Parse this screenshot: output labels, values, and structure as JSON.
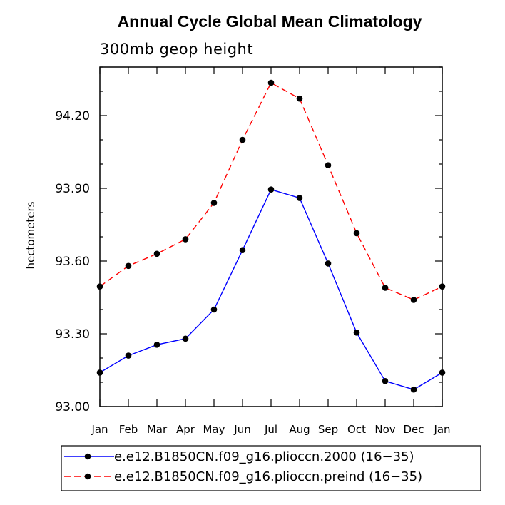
{
  "chart_data": {
    "type": "line",
    "title": "Annual Cycle Global Mean Climatology",
    "subtitle": "300mb geop height",
    "ylabel": "hectometers",
    "xlabel": "",
    "categories": [
      "Jan",
      "Feb",
      "Mar",
      "Apr",
      "May",
      "Jun",
      "Jul",
      "Aug",
      "Sep",
      "Oct",
      "Nov",
      "Dec",
      "Jan"
    ],
    "ylim": [
      93.0,
      94.4
    ],
    "yticks": [
      "93.00",
      "93.30",
      "93.60",
      "93.90",
      "94.20"
    ],
    "grid": false,
    "legend_position": "bottom",
    "series": [
      {
        "name": "e.e12.B1850CN.f09_g16.plioccn.2000 (16−35)",
        "color": "#0000ff",
        "dash": "solid",
        "values": [
          93.14,
          93.21,
          93.255,
          93.28,
          93.4,
          93.645,
          93.895,
          93.86,
          93.59,
          93.305,
          93.105,
          93.07,
          93.14
        ]
      },
      {
        "name": "e.e12.B1850CN.f09_g16.plioccn.preind (16−35)",
        "color": "#ff0000",
        "dash": "dashed",
        "values": [
          93.495,
          93.58,
          93.63,
          93.69,
          93.84,
          94.1,
          94.335,
          94.27,
          93.995,
          93.715,
          93.49,
          93.44,
          93.495
        ]
      }
    ]
  }
}
